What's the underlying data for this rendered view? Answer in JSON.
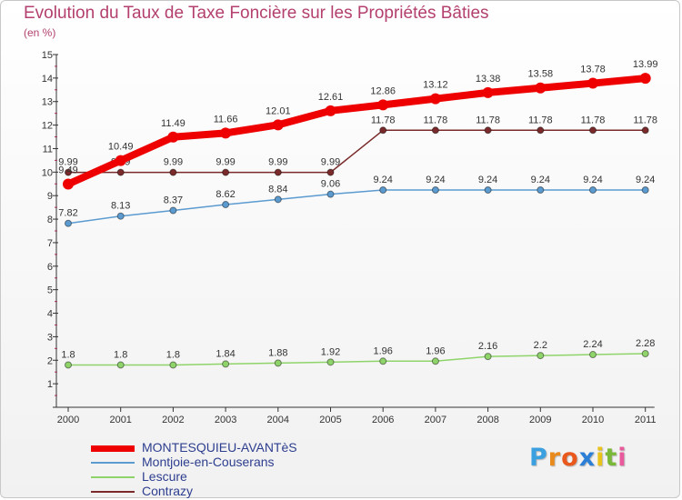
{
  "chart_data": {
    "type": "line",
    "title": "Evolution du Taux de Taxe Foncière sur les Propriétés Bâties",
    "unit_label": "(en %)",
    "xlabel": "",
    "ylabel": "",
    "ylim": [
      0,
      15
    ],
    "yticks": [
      1,
      2,
      3,
      4,
      5,
      6,
      7,
      8,
      9,
      10,
      11,
      12,
      13,
      14,
      15
    ],
    "categories": [
      "2000",
      "2001",
      "2002",
      "2003",
      "2004",
      "2005",
      "2006",
      "2007",
      "2008",
      "2009",
      "2010",
      "2011"
    ],
    "series": [
      {
        "name": "Contrazy",
        "color": "#7a2a2a",
        "values": [
          9.99,
          9.99,
          9.99,
          9.99,
          9.99,
          9.99,
          11.78,
          11.78,
          11.78,
          11.78,
          11.78,
          11.78
        ],
        "labels": [
          "9.99",
          "9.99",
          "9.99",
          "9.99",
          "9.99",
          "9.99",
          "11.78",
          "11.78",
          "11.78",
          "11.78",
          "11.78",
          "11.78"
        ]
      },
      {
        "name": "Montjoie-en-Couserans",
        "color": "#5b9bd0",
        "values": [
          7.82,
          8.13,
          8.37,
          8.62,
          8.84,
          9.06,
          9.24,
          9.24,
          9.24,
          9.24,
          9.24,
          9.24
        ],
        "labels": [
          "7.82",
          "8.13",
          "8.37",
          "8.62",
          "8.84",
          "9.06",
          "9.24",
          "9.24",
          "9.24",
          "9.24",
          "9.24",
          "9.24"
        ]
      },
      {
        "name": "Lescure",
        "color": "#8fd46a",
        "values": [
          1.8,
          1.8,
          1.8,
          1.84,
          1.88,
          1.92,
          1.96,
          1.96,
          2.16,
          2.2,
          2.24,
          2.28
        ],
        "labels": [
          "1.8",
          "1.8",
          "1.8",
          "1.84",
          "1.88",
          "1.92",
          "1.96",
          "1.96",
          "2.16",
          "2.2",
          "2.24",
          "2.28"
        ]
      },
      {
        "name": "MONTESQUIEU-AVANTèS",
        "color": "#ee0000",
        "values": [
          9.49,
          10.49,
          11.49,
          11.66,
          12.01,
          12.61,
          12.86,
          13.12,
          13.38,
          13.58,
          13.78,
          13.99
        ],
        "labels": [
          "9.49",
          "10.49",
          "11.49",
          "11.66",
          "12.01",
          "12.61",
          "12.86",
          "13.12",
          "13.38",
          "13.58",
          "13.78",
          "13.99"
        ]
      }
    ]
  },
  "legend": [
    {
      "label": "MONTESQUIEU-AVANTèS",
      "color": "#ee0000"
    },
    {
      "label": "Montjoie-en-Couserans",
      "color": "#5b9bd0"
    },
    {
      "label": "Lescure",
      "color": "#8fd46a"
    },
    {
      "label": "Contrazy",
      "color": "#7a2a2a"
    }
  ],
  "logo": {
    "letters": [
      "P",
      "r",
      "o",
      "x",
      "i",
      "t",
      "i"
    ],
    "colors": [
      "#3aa0e0",
      "#e98a1c",
      "#e9581c",
      "#2b7fd6",
      "#e9c21c",
      "#7ab83a",
      "#e95a9c"
    ]
  }
}
